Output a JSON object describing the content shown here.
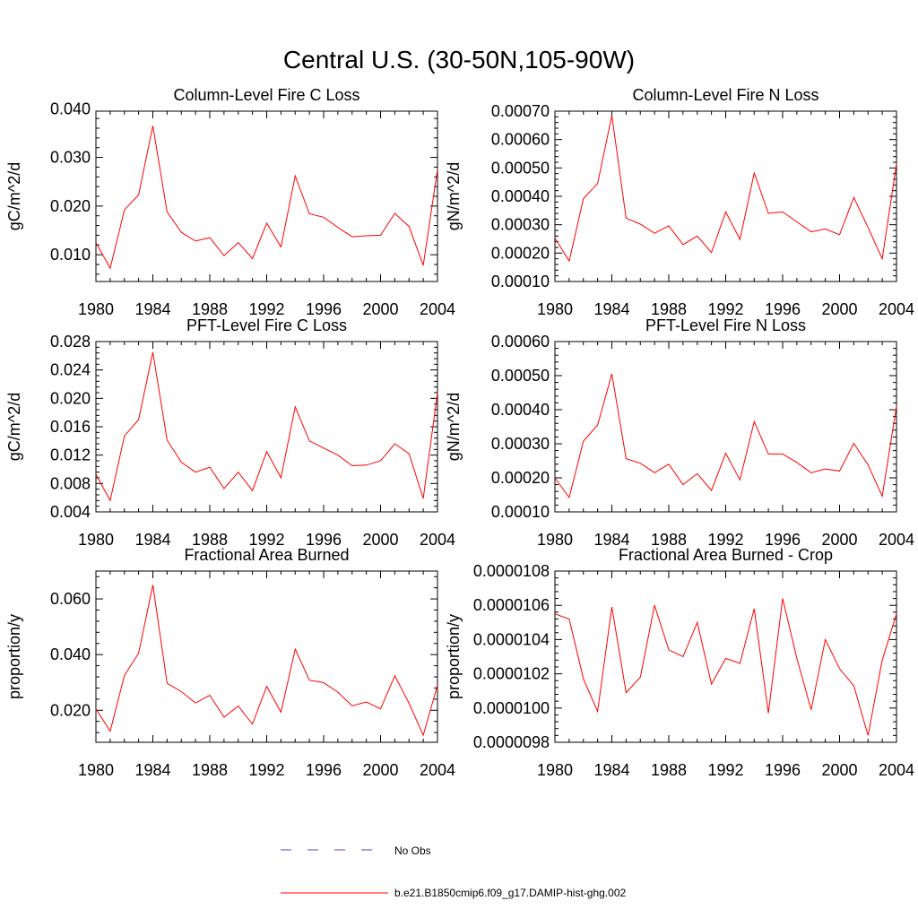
{
  "figure": {
    "title": "Central U.S. (30-50N,105-90W)",
    "line_color": "#ff0000",
    "obs_color": "#4a4ab4"
  },
  "legend": {
    "entries": [
      {
        "label": "No Obs",
        "style": "dashed",
        "color": "#4a4ab4"
      },
      {
        "label": "b.e21.B1850cmip6.f09_g17.DAMIP-hist-ghg.002",
        "style": "solid",
        "color": "#ff0000"
      }
    ]
  },
  "chart_data": [
    {
      "type": "line",
      "title": "Column-Level Fire C Loss",
      "xlabel": "",
      "ylabel": "gC/m^2/d",
      "xlim": [
        1980,
        2004
      ],
      "ylim": [
        0.0045,
        0.0395
      ],
      "xticks": [
        "1980",
        "1984",
        "1988",
        "1992",
        "1996",
        "2000",
        "2004"
      ],
      "yticks": [
        "0.010",
        "0.020",
        "0.030",
        "0.040"
      ],
      "x": [
        1980,
        1981,
        1982,
        1983,
        1984,
        1985,
        1986,
        1987,
        1988,
        1989,
        1990,
        1991,
        1992,
        1993,
        1994,
        1995,
        1996,
        1997,
        1998,
        1999,
        2000,
        2001,
        2002,
        2003,
        2004
      ],
      "values": [
        0.0125,
        0.0072,
        0.0192,
        0.0223,
        0.0365,
        0.0188,
        0.0146,
        0.0128,
        0.0135,
        0.0098,
        0.0125,
        0.0092,
        0.0165,
        0.0116,
        0.0262,
        0.0184,
        0.0177,
        0.0156,
        0.0137,
        0.0139,
        0.014,
        0.0185,
        0.0158,
        0.0078,
        0.0275
      ]
    },
    {
      "type": "line",
      "title": "Column-Level Fire N Loss",
      "xlabel": "",
      "ylabel": "gN/m^2/d",
      "xlim": [
        1980,
        2004
      ],
      "ylim": [
        0.0001,
        0.0007
      ],
      "xticks": [
        "1980",
        "1984",
        "1988",
        "1992",
        "1996",
        "2000",
        "2004"
      ],
      "yticks": [
        "0.00010",
        "0.00020",
        "0.00030",
        "0.00040",
        "0.00050",
        "0.00060",
        "0.00070"
      ],
      "x": [
        1980,
        1981,
        1982,
        1983,
        1984,
        1985,
        1986,
        1987,
        1988,
        1989,
        1990,
        1991,
        1992,
        1993,
        1994,
        1995,
        1996,
        1997,
        1998,
        1999,
        2000,
        2001,
        2002,
        2003,
        2004
      ],
      "values": [
        0.000253,
        0.000172,
        0.000392,
        0.000445,
        0.000685,
        0.000323,
        0.000302,
        0.00027,
        0.000296,
        0.00023,
        0.00026,
        0.000202,
        0.000345,
        0.000248,
        0.000482,
        0.00034,
        0.000345,
        0.00031,
        0.000275,
        0.000285,
        0.000265,
        0.000396,
        0.00029,
        0.00018,
        0.000515
      ]
    },
    {
      "type": "line",
      "title": "PFT-Level Fire C Loss",
      "xlabel": "",
      "ylabel": "gC/m^2/d",
      "xlim": [
        1980,
        2004
      ],
      "ylim": [
        0.004,
        0.028
      ],
      "xticks": [
        "1980",
        "1984",
        "1988",
        "1992",
        "1996",
        "2000",
        "2004"
      ],
      "yticks": [
        "0.004",
        "0.008",
        "0.012",
        "0.016",
        "0.020",
        "0.024",
        "0.028"
      ],
      "x": [
        1980,
        1981,
        1982,
        1983,
        1984,
        1985,
        1986,
        1987,
        1988,
        1989,
        1990,
        1991,
        1992,
        1993,
        1994,
        1995,
        1996,
        1997,
        1998,
        1999,
        2000,
        2001,
        2002,
        2003,
        2004
      ],
      "values": [
        0.0093,
        0.0056,
        0.0147,
        0.017,
        0.0265,
        0.0141,
        0.011,
        0.0096,
        0.0103,
        0.0073,
        0.0096,
        0.007,
        0.0125,
        0.0088,
        0.0188,
        0.014,
        0.013,
        0.012,
        0.0105,
        0.0106,
        0.0112,
        0.0136,
        0.0122,
        0.0059,
        0.0208
      ]
    },
    {
      "type": "line",
      "title": "PFT-Level Fire N Loss",
      "xlabel": "",
      "ylabel": "gN/m^2/d",
      "xlim": [
        1980,
        2004
      ],
      "ylim": [
        0.0001,
        0.0006
      ],
      "xticks": [
        "1980",
        "1984",
        "1988",
        "1992",
        "1996",
        "2000",
        "2004"
      ],
      "yticks": [
        "0.00010",
        "0.00020",
        "0.00030",
        "0.00040",
        "0.00050",
        "0.00060"
      ],
      "x": [
        1980,
        1981,
        1982,
        1983,
        1984,
        1985,
        1986,
        1987,
        1988,
        1989,
        1990,
        1991,
        1992,
        1993,
        1994,
        1995,
        1996,
        1997,
        1998,
        1999,
        2000,
        2001,
        2002,
        2003,
        2004
      ],
      "values": [
        0.0002,
        0.000142,
        0.000308,
        0.000355,
        0.000505,
        0.000256,
        0.000243,
        0.000215,
        0.00024,
        0.00018,
        0.000212,
        0.000163,
        0.000272,
        0.000194,
        0.000365,
        0.00027,
        0.00027,
        0.000245,
        0.000215,
        0.000226,
        0.00022,
        0.000301,
        0.000238,
        0.000146,
        0.00041
      ]
    },
    {
      "type": "line",
      "title": "Fractional Area Burned",
      "xlabel": "",
      "ylabel": "proportion/y",
      "xlim": [
        1980,
        2004
      ],
      "ylim": [
        0.0085,
        0.07
      ],
      "xticks": [
        "1980",
        "1984",
        "1988",
        "1992",
        "1996",
        "2000",
        "2004"
      ],
      "yticks": [
        "0.020",
        "0.040",
        "0.060"
      ],
      "x": [
        1980,
        1981,
        1982,
        1983,
        1984,
        1985,
        1986,
        1987,
        1988,
        1989,
        1990,
        1991,
        1992,
        1993,
        1994,
        1995,
        1996,
        1997,
        1998,
        1999,
        2000,
        2001,
        2002,
        2003,
        2004
      ],
      "values": [
        0.0205,
        0.0125,
        0.0325,
        0.0405,
        0.065,
        0.0297,
        0.0267,
        0.0226,
        0.0254,
        0.0175,
        0.0215,
        0.015,
        0.0286,
        0.0193,
        0.042,
        0.0308,
        0.0299,
        0.0265,
        0.0216,
        0.023,
        0.0205,
        0.0324,
        0.0225,
        0.011,
        0.029
      ]
    },
    {
      "type": "line",
      "title": "Fractional Area Burned - Crop",
      "xlabel": "",
      "ylabel": "proportion/y",
      "xlim": [
        1980,
        2004
      ],
      "ylim": [
        9.8e-06,
        1.08e-05
      ],
      "xticks": [
        "1980",
        "1984",
        "1988",
        "1992",
        "1996",
        "2000",
        "2004"
      ],
      "yticks": [
        "0.0000098",
        "0.0000100",
        "0.0000102",
        "0.0000104",
        "0.0000106",
        "0.0000108"
      ],
      "x": [
        1980,
        1981,
        1982,
        1983,
        1984,
        1985,
        1986,
        1987,
        1988,
        1989,
        1990,
        1991,
        1992,
        1993,
        1994,
        1995,
        1996,
        1997,
        1998,
        1999,
        2000,
        2001,
        2002,
        2003,
        2004
      ],
      "values": [
        1.055e-05,
        1.052e-05,
        1.017e-05,
        9.98e-06,
        1.059e-05,
        1.009e-05,
        1.018e-05,
        1.06e-05,
        1.034e-05,
        1.03e-05,
        1.05e-05,
        1.014e-05,
        1.029e-05,
        1.026e-05,
        1.058e-05,
        9.97e-06,
        1.064e-05,
        1.029e-05,
        9.99e-06,
        1.04e-05,
        1.023e-05,
        1.013e-05,
        9.84e-06,
        1.028e-05,
        1.055e-05
      ]
    }
  ]
}
